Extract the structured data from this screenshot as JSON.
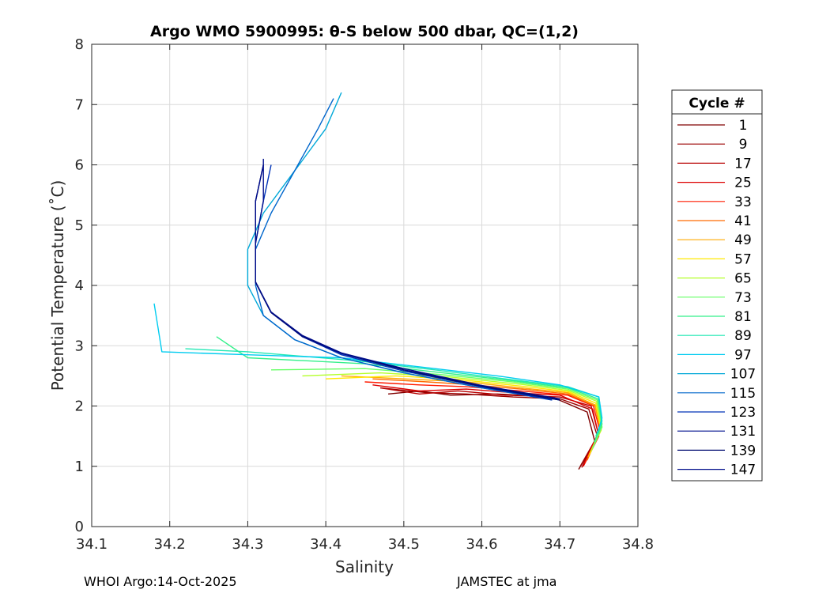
{
  "chart_data": {
    "type": "line",
    "title": "Argo WMO 5900995: θ-S below 500 dbar,  QC=(1,2)",
    "xlabel": "Salinity",
    "ylabel": "Potential Temperature (˚C)",
    "xlim": [
      34.1,
      34.8
    ],
    "ylim": [
      0,
      8
    ],
    "xticks": [
      "34.1",
      "34.2",
      "34.3",
      "34.4",
      "34.5",
      "34.6",
      "34.7",
      "34.8"
    ],
    "yticks": [
      "0",
      "1",
      "2",
      "3",
      "4",
      "5",
      "6",
      "7",
      "8"
    ],
    "grid": true,
    "legend": {
      "title": "Cycle #",
      "placement": "right-outside",
      "entries": [
        {
          "label": "1",
          "color": "#800000"
        },
        {
          "label": "9",
          "color": "#9b0000"
        },
        {
          "label": "17",
          "color": "#b80000"
        },
        {
          "label": "25",
          "color": "#dd0000"
        },
        {
          "label": "33",
          "color": "#ff1a00"
        },
        {
          "label": "41",
          "color": "#ff6a00"
        },
        {
          "label": "49",
          "color": "#ffaa00"
        },
        {
          "label": "57",
          "color": "#ffe800"
        },
        {
          "label": "65",
          "color": "#b4ff2b"
        },
        {
          "label": "73",
          "color": "#66ff66"
        },
        {
          "label": "81",
          "color": "#33f08a"
        },
        {
          "label": "89",
          "color": "#22e8b4"
        },
        {
          "label": "97",
          "color": "#00ccf0"
        },
        {
          "label": "107",
          "color": "#00a8d8"
        },
        {
          "label": "115",
          "color": "#0066cc"
        },
        {
          "label": "123",
          "color": "#0033b8"
        },
        {
          "label": "131",
          "color": "#00108e"
        },
        {
          "label": "139",
          "color": "#000a70"
        },
        {
          "label": "147",
          "color": "#000d8a"
        }
      ]
    },
    "series": [
      {
        "name": "1",
        "color": "#800000",
        "x": [
          34.724,
          34.745,
          34.735,
          34.69,
          34.62,
          34.56,
          34.52,
          34.48
        ],
        "y": [
          0.95,
          1.4,
          1.9,
          2.15,
          2.2,
          2.18,
          2.25,
          2.2
        ]
      },
      {
        "name": "9",
        "color": "#9b0000",
        "x": [
          34.726,
          34.748,
          34.737,
          34.7,
          34.64,
          34.58,
          34.53,
          34.47
        ],
        "y": [
          1.0,
          1.5,
          1.95,
          2.12,
          2.15,
          2.2,
          2.22,
          2.3
        ]
      },
      {
        "name": "17",
        "color": "#b80000",
        "x": [
          34.728,
          34.749,
          34.74,
          34.7,
          34.63,
          34.57,
          34.52,
          34.47
        ],
        "y": [
          0.98,
          1.55,
          2.0,
          2.15,
          2.18,
          2.25,
          2.2,
          2.3
        ]
      },
      {
        "name": "25",
        "color": "#dd0000",
        "x": [
          34.73,
          34.75,
          34.742,
          34.7,
          34.64,
          34.58,
          34.52,
          34.46
        ],
        "y": [
          1.0,
          1.5,
          1.95,
          2.18,
          2.22,
          2.28,
          2.25,
          2.35
        ]
      },
      {
        "name": "33",
        "color": "#ff1a00",
        "x": [
          34.732,
          34.751,
          34.743,
          34.71,
          34.65,
          34.58,
          34.52,
          34.45
        ],
        "y": [
          1.05,
          1.6,
          2.0,
          2.18,
          2.25,
          2.32,
          2.35,
          2.4
        ]
      },
      {
        "name": "41",
        "color": "#ff6a00",
        "x": [
          34.735,
          34.752,
          34.745,
          34.71,
          34.65,
          34.59,
          34.53,
          34.46
        ],
        "y": [
          1.1,
          1.6,
          2.0,
          2.2,
          2.28,
          2.35,
          2.4,
          2.45
        ]
      },
      {
        "name": "49",
        "color": "#ffaa00",
        "x": [
          34.736,
          34.752,
          34.745,
          34.71,
          34.65,
          34.58,
          34.5,
          34.42
        ],
        "y": [
          1.15,
          1.6,
          2.02,
          2.22,
          2.3,
          2.4,
          2.45,
          2.5
        ]
      },
      {
        "name": "57",
        "color": "#ffe800",
        "x": [
          34.738,
          34.753,
          34.746,
          34.71,
          34.65,
          34.57,
          34.49,
          34.4
        ],
        "y": [
          1.2,
          1.6,
          2.05,
          2.24,
          2.33,
          2.44,
          2.5,
          2.45
        ]
      },
      {
        "name": "65",
        "color": "#b4ff2b",
        "x": [
          34.74,
          34.753,
          34.747,
          34.71,
          34.65,
          34.56,
          34.47,
          34.37
        ],
        "y": [
          1.25,
          1.65,
          2.08,
          2.26,
          2.36,
          2.48,
          2.55,
          2.5
        ]
      },
      {
        "name": "73",
        "color": "#66ff66",
        "x": [
          34.742,
          34.754,
          34.748,
          34.71,
          34.64,
          34.55,
          34.45,
          34.33
        ],
        "y": [
          1.3,
          1.65,
          2.1,
          2.28,
          2.4,
          2.52,
          2.62,
          2.6
        ]
      },
      {
        "name": "81",
        "color": "#33f08a",
        "x": [
          34.744,
          34.754,
          34.749,
          34.71,
          34.64,
          34.55,
          34.45,
          34.3,
          34.26
        ],
        "y": [
          1.4,
          1.7,
          2.12,
          2.3,
          2.42,
          2.55,
          2.7,
          2.8,
          3.15
        ]
      },
      {
        "name": "89",
        "color": "#22e8b4",
        "x": [
          34.746,
          34.754,
          34.75,
          34.71,
          34.63,
          34.54,
          34.44,
          34.3,
          34.22
        ],
        "y": [
          1.5,
          1.75,
          2.15,
          2.32,
          2.45,
          2.6,
          2.75,
          2.9,
          2.95
        ]
      },
      {
        "name": "97",
        "color": "#00ccf0",
        "x": [
          34.748,
          34.754,
          34.75,
          34.7,
          34.62,
          34.52,
          34.42,
          34.3,
          34.19,
          34.18
        ],
        "y": [
          1.55,
          1.8,
          2.15,
          2.35,
          2.5,
          2.65,
          2.8,
          2.85,
          2.9,
          3.7
        ]
      },
      {
        "name": "107",
        "color": "#00a8d8",
        "x": [
          34.7,
          34.6,
          34.5,
          34.42,
          34.36,
          34.32,
          34.3,
          34.3,
          34.32,
          34.36,
          34.4,
          34.42
        ],
        "y": [
          2.1,
          2.3,
          2.55,
          2.8,
          3.1,
          3.5,
          4.0,
          4.6,
          5.2,
          5.9,
          6.6,
          7.2
        ]
      },
      {
        "name": "115",
        "color": "#0066cc",
        "x": [
          34.69,
          34.6,
          34.5,
          34.42,
          34.36,
          34.32,
          34.31,
          34.31,
          34.33,
          34.36,
          34.39,
          34.41
        ],
        "y": [
          2.1,
          2.3,
          2.55,
          2.8,
          3.1,
          3.5,
          4.0,
          4.6,
          5.2,
          5.9,
          6.6,
          7.1
        ]
      },
      {
        "name": "123",
        "color": "#0033b8",
        "x": [
          34.69,
          34.6,
          34.5,
          34.42,
          34.37,
          34.33,
          34.31,
          34.31,
          34.32,
          34.33
        ],
        "y": [
          2.1,
          2.32,
          2.58,
          2.85,
          3.15,
          3.55,
          4.05,
          4.7,
          5.4,
          6.0
        ]
      },
      {
        "name": "131",
        "color": "#00108e",
        "x": [
          34.7,
          34.6,
          34.5,
          34.42,
          34.37,
          34.33,
          34.31,
          34.31,
          34.32,
          34.32
        ],
        "y": [
          2.1,
          2.32,
          2.6,
          2.87,
          3.15,
          3.55,
          4.05,
          4.7,
          5.4,
          6.1
        ]
      },
      {
        "name": "139",
        "color": "#000a70",
        "x": [
          34.7,
          34.6,
          34.5,
          34.42,
          34.37,
          34.33,
          34.31,
          34.31,
          34.31,
          34.32
        ],
        "y": [
          2.1,
          2.33,
          2.6,
          2.88,
          3.16,
          3.55,
          4.05,
          4.7,
          5.4,
          6.0
        ]
      },
      {
        "name": "147",
        "color": "#000d8a",
        "x": [
          34.7,
          34.6,
          34.5,
          34.42,
          34.37,
          34.33,
          34.31,
          34.31,
          34.31,
          34.32
        ],
        "y": [
          2.12,
          2.34,
          2.62,
          2.88,
          3.17,
          3.56,
          4.06,
          4.7,
          5.4,
          6.0
        ]
      }
    ]
  },
  "footer": {
    "left": "WHOI Argo:14-Oct-2025",
    "right": "JAMSTEC at jma"
  }
}
